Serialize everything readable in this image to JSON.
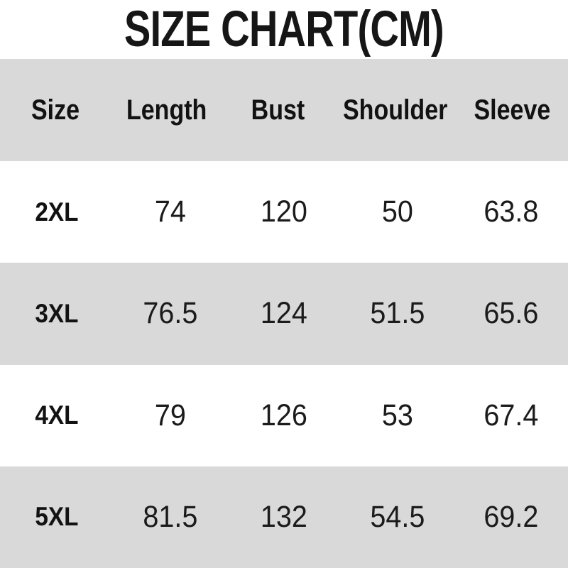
{
  "title": "SIZE CHART(CM)",
  "colors": {
    "band_gray": "#d9d9d9",
    "background": "#ffffff",
    "text": "#141414"
  },
  "chart_data": {
    "type": "table",
    "title": "SIZE CHART(CM)",
    "unit": "cm",
    "columns": [
      "Size",
      "Length",
      "Bust",
      "Shoulder",
      "Sleeve"
    ],
    "rows": [
      [
        "2XL",
        "74",
        "120",
        "50",
        "63.8"
      ],
      [
        "3XL",
        "76.5",
        "124",
        "51.5",
        "65.6"
      ],
      [
        "4XL",
        "79",
        "126",
        "53",
        "67.4"
      ],
      [
        "5XL",
        "81.5",
        "132",
        "54.5",
        "69.2"
      ]
    ],
    "layout_hints": {
      "columns_equal_width": true,
      "alternating_row_shading": [
        "gray-header",
        "white",
        "gray",
        "white",
        "gray"
      ],
      "grid_lines": false
    }
  }
}
